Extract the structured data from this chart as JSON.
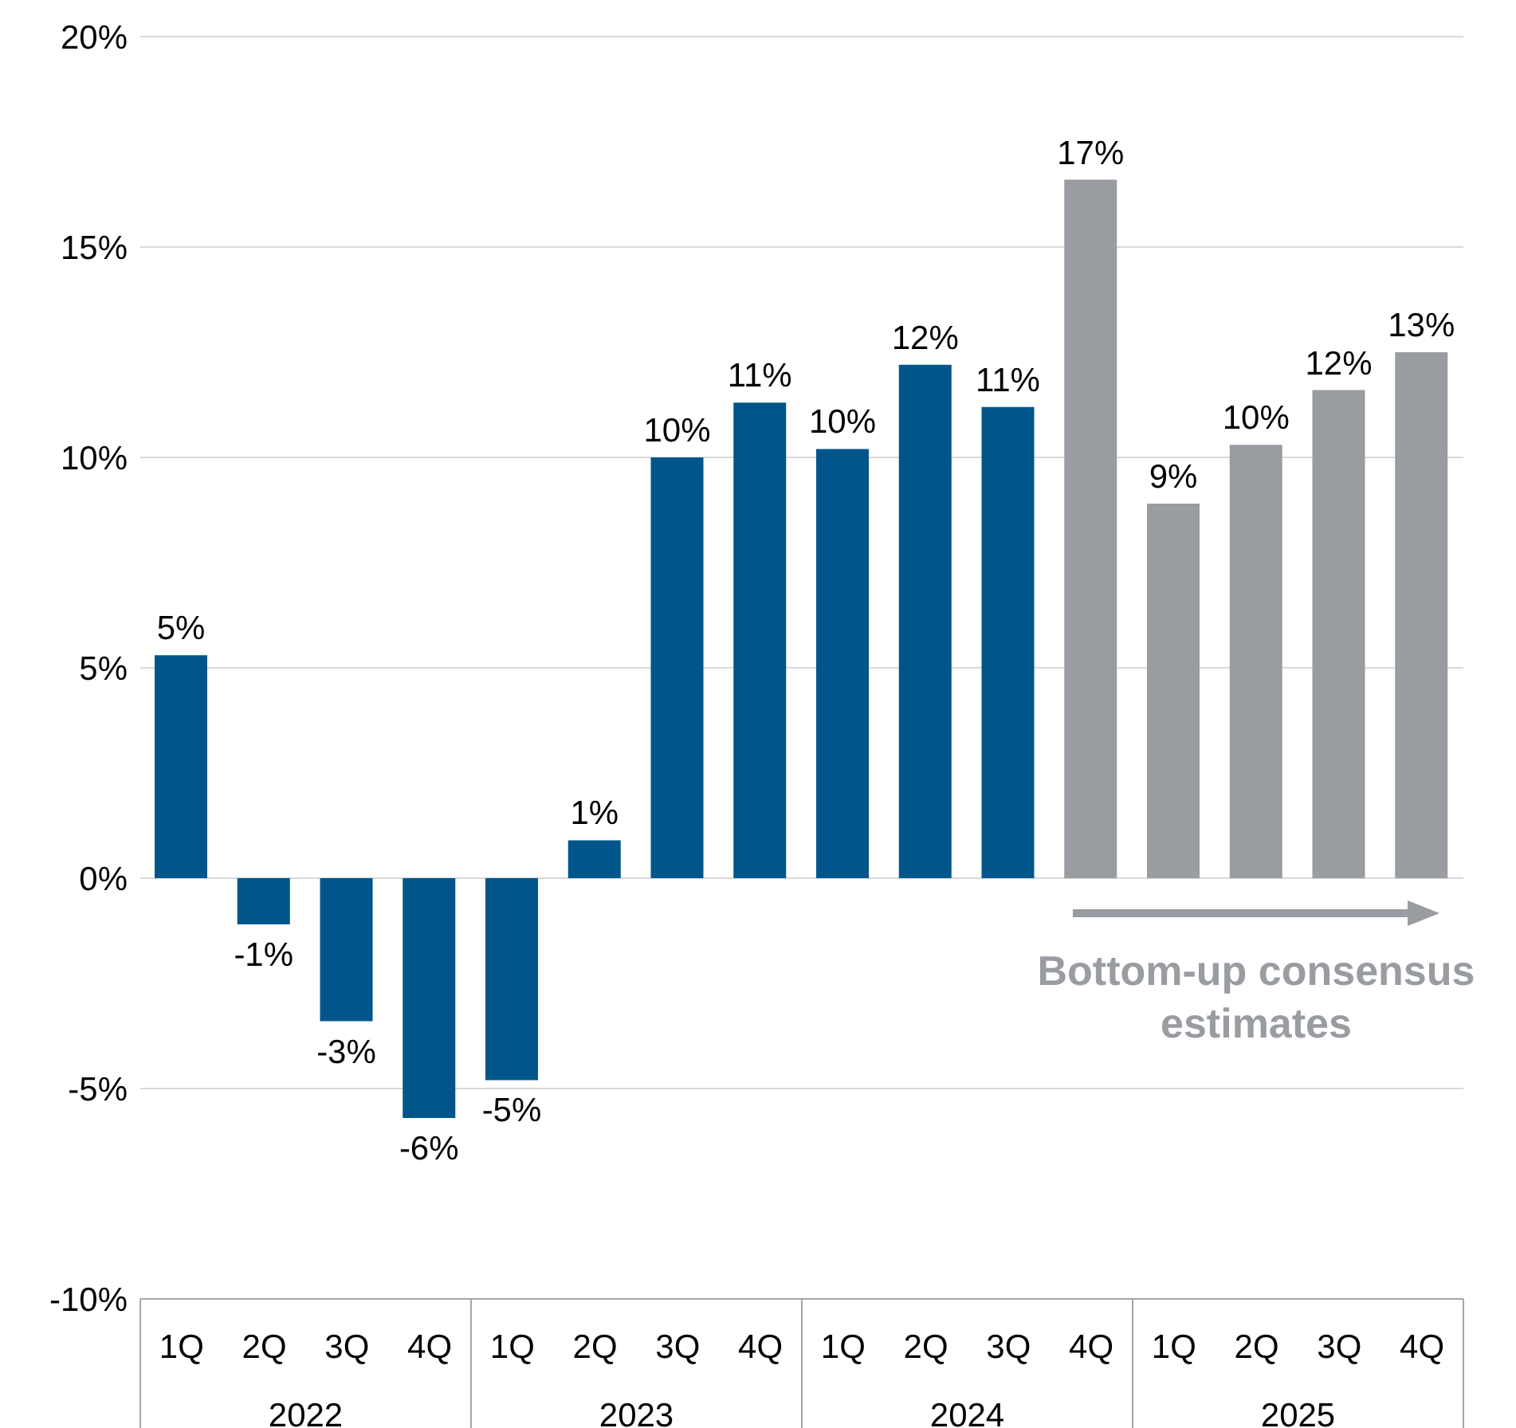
{
  "chart_data": {
    "type": "bar",
    "categories": [
      "1Q",
      "2Q",
      "3Q",
      "4Q",
      "1Q",
      "2Q",
      "3Q",
      "4Q",
      "1Q",
      "2Q",
      "3Q",
      "4Q",
      "1Q",
      "2Q",
      "3Q",
      "4Q"
    ],
    "values": [
      5.3,
      -1.1,
      -3.4,
      -5.7,
      -4.8,
      0.9,
      10.0,
      11.3,
      10.2,
      12.2,
      11.2,
      16.6,
      8.9,
      10.3,
      11.6,
      12.5
    ],
    "value_labels": [
      "5%",
      "-1%",
      "-3%",
      "-6%",
      "-5%",
      "1%",
      "10%",
      "11%",
      "10%",
      "12%",
      "11%",
      "17%",
      "9%",
      "10%",
      "12%",
      "13%"
    ],
    "colors": [
      "#00568a",
      "#00568a",
      "#00568a",
      "#00568a",
      "#00568a",
      "#00568a",
      "#00568a",
      "#00568a",
      "#00568a",
      "#00568a",
      "#00568a",
      "#999ca0",
      "#999ca0",
      "#999ca0",
      "#999ca0",
      "#999ca0"
    ],
    "ylim": [
      -10,
      20
    ],
    "yticks": [
      {
        "value": -10,
        "label": "-10%"
      },
      {
        "value": -5,
        "label": "-5%"
      },
      {
        "value": 0,
        "label": "0%"
      },
      {
        "value": 5,
        "label": "5%"
      },
      {
        "value": 10,
        "label": "10%"
      },
      {
        "value": 15,
        "label": "15%"
      },
      {
        "value": 20,
        "label": "20%"
      }
    ],
    "grid": "y",
    "legend": false,
    "annotations": [
      "2022",
      "2023",
      "2024",
      "2025",
      "Bottom-up consensus estimates"
    ]
  }
}
